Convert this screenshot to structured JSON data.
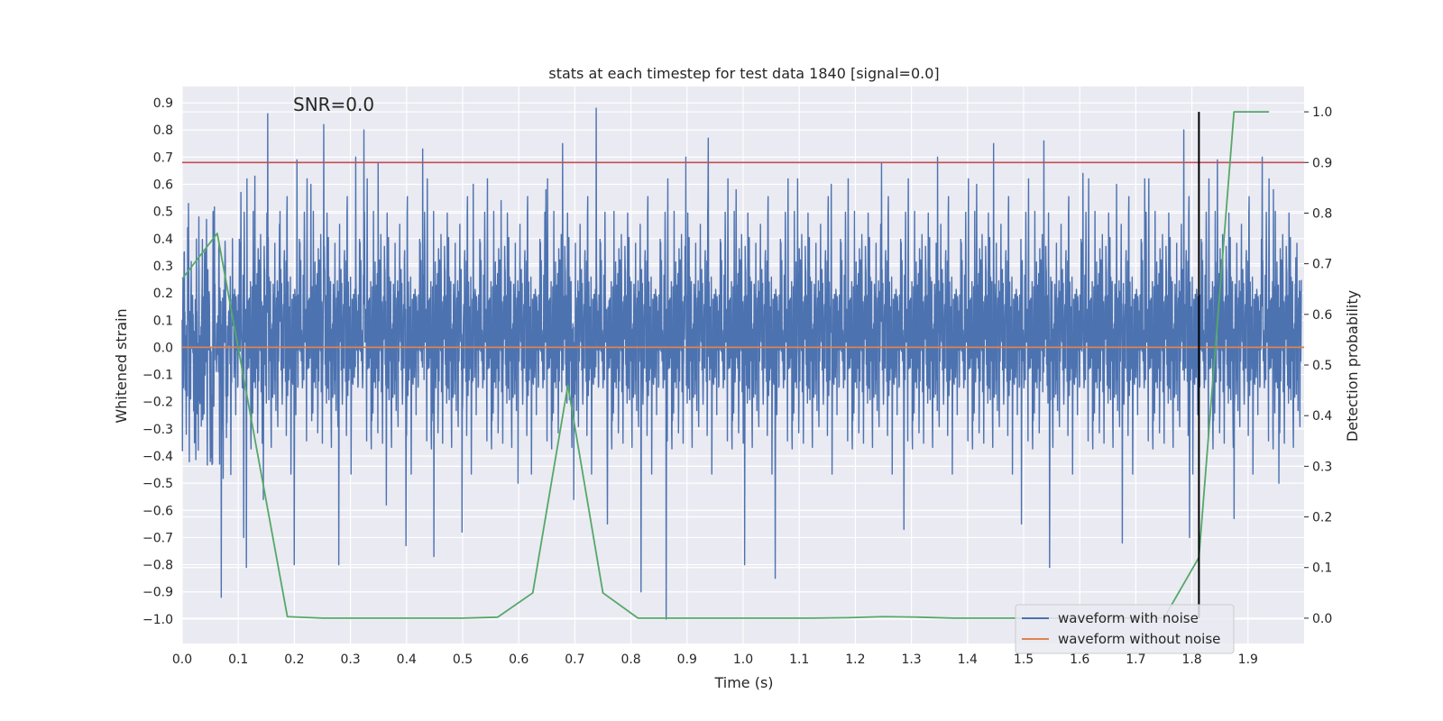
{
  "chart_data": {
    "type": "line",
    "title": "stats at each timestep for test data 1840 [signal=0.0]",
    "annotation": "SNR=0.0",
    "xlabel": "Time (s)",
    "ylabel": "Whitened strain",
    "y2label": "Detection probability",
    "xlim": [
      0.0,
      2.0
    ],
    "ylim": [
      -1.09,
      0.96
    ],
    "y2lim": [
      -0.05,
      1.05
    ],
    "x_ticks": [
      "0.0",
      "0.1",
      "0.2",
      "0.3",
      "0.4",
      "0.5",
      "0.6",
      "0.7",
      "0.8",
      "0.9",
      "1.0",
      "1.1",
      "1.2",
      "1.3",
      "1.4",
      "1.5",
      "1.6",
      "1.7",
      "1.8",
      "1.9"
    ],
    "y_ticks": [
      "0.9",
      "0.8",
      "0.7",
      "0.6",
      "0.5",
      "0.4",
      "0.3",
      "0.2",
      "0.1",
      "0.0",
      "−0.1",
      "−0.2",
      "−0.3",
      "−0.4",
      "−0.5",
      "−0.6",
      "−0.7",
      "−0.8",
      "−0.9",
      "−1.0"
    ],
    "y2_ticks": [
      "1.0",
      "0.9",
      "0.8",
      "0.7",
      "0.6",
      "0.5",
      "0.4",
      "0.3",
      "0.2",
      "0.1",
      "0.0"
    ],
    "grid": true,
    "legend_position": "lower-right",
    "colors": {
      "plot_bg": "#eaeaf2",
      "grid": "#ffffff",
      "noise": "#4c72b0",
      "clean": "#dd8452",
      "probability": "#55a868",
      "threshold": "#c44e52",
      "detection_marker": "#000000"
    },
    "threshold": 0.9,
    "detection_time": 1.8125,
    "series": [
      {
        "name": "waveform with noise",
        "axis": "left",
        "style": "noisy-dense",
        "envelope_peaks": [
          [
            0.01,
            0.44
          ],
          [
            0.03,
            0.48
          ],
          [
            0.055,
            0.5
          ],
          [
            0.07,
            -0.92
          ],
          [
            0.09,
            0.4
          ],
          [
            0.105,
            0.57
          ],
          [
            0.11,
            -0.7
          ],
          [
            0.115,
            -0.81
          ],
          [
            0.13,
            0.63
          ],
          [
            0.145,
            -0.56
          ],
          [
            0.153,
            0.86
          ],
          [
            0.175,
            0.5
          ],
          [
            0.2,
            -0.8
          ],
          [
            0.205,
            0.69
          ],
          [
            0.23,
            0.6
          ],
          [
            0.253,
            0.82
          ],
          [
            0.28,
            -0.8
          ],
          [
            0.31,
            0.7
          ],
          [
            0.325,
            0.8
          ],
          [
            0.35,
            0.68
          ],
          [
            0.365,
            -0.58
          ],
          [
            0.4,
            -0.73
          ],
          [
            0.43,
            0.73
          ],
          [
            0.45,
            -0.77
          ],
          [
            0.5,
            -0.68
          ],
          [
            0.52,
            0.6
          ],
          [
            0.57,
            0.54
          ],
          [
            0.6,
            -0.5
          ],
          [
            0.65,
            0.58
          ],
          [
            0.68,
            0.75
          ],
          [
            0.7,
            -0.56
          ],
          [
            0.74,
            0.88
          ],
          [
            0.76,
            -0.65
          ],
          [
            0.82,
            -0.9
          ],
          [
            0.865,
            -1.0
          ],
          [
            0.9,
            0.7
          ],
          [
            0.94,
            0.77
          ],
          [
            0.99,
            0.58
          ],
          [
            1.005,
            -0.8
          ],
          [
            1.06,
            -0.85
          ],
          [
            1.1,
            0.62
          ],
          [
            1.16,
            0.6
          ],
          [
            1.25,
            0.68
          ],
          [
            1.29,
            -0.67
          ],
          [
            1.35,
            0.7
          ],
          [
            1.42,
            0.6
          ],
          [
            1.45,
            0.75
          ],
          [
            1.5,
            -0.65
          ],
          [
            1.54,
            0.76
          ],
          [
            1.55,
            -0.81
          ],
          [
            1.61,
            0.64
          ],
          [
            1.67,
            0.6
          ],
          [
            1.68,
            -0.72
          ],
          [
            1.72,
            0.62
          ],
          [
            1.79,
            0.8
          ],
          [
            1.8,
            -0.7
          ],
          [
            1.85,
            0.69
          ],
          [
            1.88,
            -0.63
          ],
          [
            1.93,
            0.7
          ],
          [
            1.95,
            0.58
          ],
          [
            1.96,
            -0.5
          ],
          [
            1.99,
            0.33
          ]
        ]
      },
      {
        "name": "waveform without noise",
        "axis": "left",
        "x": [
          0.0,
          2.0
        ],
        "y": [
          0.0,
          0.0
        ]
      },
      {
        "axis": "right",
        "x": [
          0.0,
          0.0625,
          0.1875,
          0.25,
          0.3125,
          0.375,
          0.4375,
          0.5,
          0.5625,
          0.625,
          0.6875,
          0.75,
          0.8125,
          0.875,
          0.9375,
          1.0,
          1.0625,
          1.125,
          1.1875,
          1.25,
          1.3125,
          1.375,
          1.4375,
          1.5,
          1.5625,
          1.625,
          1.6875,
          1.75,
          1.8125,
          1.875,
          1.9375
        ],
        "y": [
          0.67,
          0.76,
          0.003,
          0.0,
          0.0,
          0.0,
          0.0,
          0.0,
          0.002,
          0.05,
          0.46,
          0.05,
          0.0,
          0.0,
          0.0,
          0.0,
          0.0,
          0.0,
          0.001,
          0.003,
          0.002,
          0.0,
          0.0,
          0.0,
          0.0,
          0.0,
          0.0,
          0.0,
          0.12,
          1.0,
          1.0
        ]
      }
    ]
  }
}
